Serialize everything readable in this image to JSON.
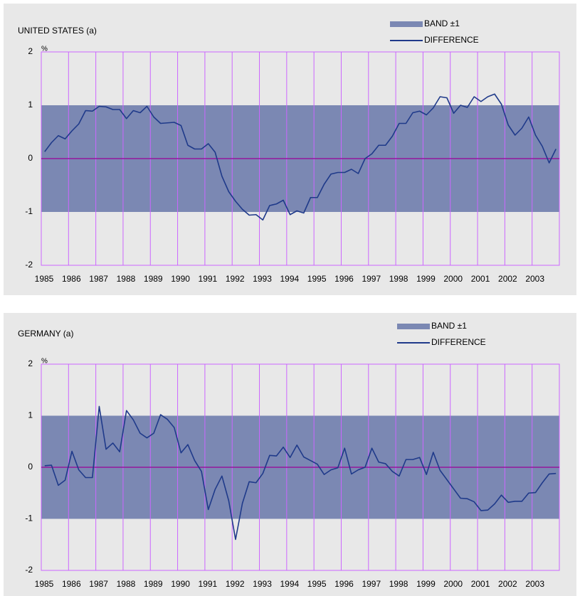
{
  "chart_data": [
    {
      "type": "band-line",
      "title": "UNITED STATES (a)",
      "ylabel": "%",
      "band": {
        "name": "BAND ±1",
        "color": "#7b88b3",
        "low": -1,
        "high": 1
      },
      "x": [
        1985.125,
        1985.375,
        1985.625,
        1985.875,
        1986.125,
        1986.375,
        1986.625,
        1986.875,
        1987.125,
        1987.375,
        1987.625,
        1987.875,
        1988.125,
        1988.375,
        1988.625,
        1988.875,
        1989.125,
        1989.375,
        1989.625,
        1989.875,
        1990.125,
        1990.375,
        1990.625,
        1990.875,
        1991.125,
        1991.375,
        1991.625,
        1991.875,
        1992.125,
        1992.375,
        1992.625,
        1992.875,
        1993.125,
        1993.375,
        1993.625,
        1993.875,
        1994.125,
        1994.375,
        1994.625,
        1994.875,
        1995.125,
        1995.375,
        1995.625,
        1995.875,
        1996.125,
        1996.375,
        1996.625,
        1996.875,
        1997.125,
        1997.375,
        1997.625,
        1997.875,
        1998.125,
        1998.375,
        1998.625,
        1998.875,
        1999.125,
        1999.375,
        1999.625,
        1999.875,
        2000.125,
        2000.375,
        2000.625,
        2000.875,
        2001.125,
        2001.375,
        2001.625,
        2001.875,
        2002.125,
        2002.375,
        2002.625,
        2002.875,
        2003.125,
        2003.375,
        2003.625,
        2003.875
      ],
      "series": [
        {
          "name": "DIFFERENCE",
          "color": "#1f3a8a",
          "values": [
            0.13,
            0.3,
            0.43,
            0.37,
            0.52,
            0.65,
            0.9,
            0.89,
            0.98,
            0.97,
            0.92,
            0.92,
            0.75,
            0.9,
            0.86,
            0.98,
            0.78,
            0.66,
            0.67,
            0.68,
            0.62,
            0.25,
            0.18,
            0.18,
            0.28,
            0.12,
            -0.33,
            -0.62,
            -0.8,
            -0.95,
            -1.06,
            -1.05,
            -1.15,
            -0.88,
            -0.85,
            -0.78,
            -1.05,
            -0.98,
            -1.02,
            -0.73,
            -0.73,
            -0.48,
            -0.29,
            -0.26,
            -0.26,
            -0.2,
            -0.28,
            0.0,
            0.09,
            0.25,
            0.25,
            0.42,
            0.66,
            0.66,
            0.86,
            0.89,
            0.82,
            0.95,
            1.16,
            1.14,
            0.85,
            1.0,
            0.96,
            1.16,
            1.07,
            1.16,
            1.21,
            1.02,
            0.63,
            0.44,
            0.57,
            0.78,
            0.44,
            0.23,
            -0.08,
            0.18
          ]
        }
      ],
      "xlim": [
        1985,
        2004
      ],
      "xticks": [
        1985,
        1986,
        1987,
        1988,
        1989,
        1990,
        1991,
        1992,
        1993,
        1994,
        1995,
        1996,
        1997,
        1998,
        1999,
        2000,
        2001,
        2002,
        2003
      ],
      "ylim": [
        -2,
        2
      ],
      "yticks": [
        -2,
        -1,
        0,
        1,
        2
      ],
      "zero_line": true,
      "grid_color": "#cc66ff",
      "zero_color": "#990099"
    },
    {
      "type": "band-line",
      "title": "GERMANY (a)",
      "ylabel": "%",
      "band": {
        "name": "BAND ±1",
        "color": "#7b88b3",
        "low": -1,
        "high": 1
      },
      "x": [
        1985.125,
        1985.375,
        1985.625,
        1985.875,
        1986.125,
        1986.375,
        1986.625,
        1986.875,
        1987.125,
        1987.375,
        1987.625,
        1987.875,
        1988.125,
        1988.375,
        1988.625,
        1988.875,
        1989.125,
        1989.375,
        1989.625,
        1989.875,
        1990.125,
        1990.375,
        1990.625,
        1990.875,
        1991.125,
        1991.375,
        1991.625,
        1991.875,
        1992.125,
        1992.375,
        1992.625,
        1992.875,
        1993.125,
        1993.375,
        1993.625,
        1993.875,
        1994.125,
        1994.375,
        1994.625,
        1994.875,
        1995.125,
        1995.375,
        1995.625,
        1995.875,
        1996.125,
        1996.375,
        1996.625,
        1996.875,
        1997.125,
        1997.375,
        1997.625,
        1997.875,
        1998.125,
        1998.375,
        1998.625,
        1998.875,
        1999.125,
        1999.375,
        1999.625,
        1999.875,
        2000.125,
        2000.375,
        2000.625,
        2000.875,
        2001.125,
        2001.375,
        2001.625,
        2001.875,
        2002.125,
        2002.375,
        2002.625,
        2002.875,
        2003.125,
        2003.375,
        2003.625,
        2003.875
      ],
      "series": [
        {
          "name": "DIFFERENCE",
          "color": "#1f3a8a",
          "values": [
            0.03,
            0.04,
            -0.35,
            -0.25,
            0.31,
            -0.05,
            -0.2,
            -0.2,
            1.18,
            0.35,
            0.47,
            0.3,
            1.1,
            0.92,
            0.66,
            0.57,
            0.66,
            1.02,
            0.93,
            0.77,
            0.28,
            0.44,
            0.13,
            -0.08,
            -0.82,
            -0.43,
            -0.17,
            -0.65,
            -1.4,
            -0.7,
            -0.28,
            -0.3,
            -0.12,
            0.23,
            0.22,
            0.39,
            0.19,
            0.43,
            0.2,
            0.13,
            0.06,
            -0.14,
            -0.05,
            -0.01,
            0.37,
            -0.13,
            -0.05,
            0.0,
            0.37,
            0.1,
            0.07,
            -0.08,
            -0.17,
            0.15,
            0.15,
            0.19,
            -0.14,
            0.29,
            -0.06,
            -0.24,
            -0.42,
            -0.6,
            -0.61,
            -0.67,
            -0.84,
            -0.83,
            -0.71,
            -0.54,
            -0.68,
            -0.66,
            -0.66,
            -0.5,
            -0.49,
            -0.3,
            -0.13,
            -0.12
          ]
        }
      ],
      "xlim": [
        1985,
        2004
      ],
      "xticks": [
        1985,
        1986,
        1987,
        1988,
        1989,
        1990,
        1991,
        1992,
        1993,
        1994,
        1995,
        1996,
        1997,
        1998,
        1999,
        2000,
        2001,
        2002,
        2003
      ],
      "ylim": [
        -2,
        2
      ],
      "yticks": [
        -2,
        -1,
        0,
        1,
        2
      ],
      "zero_line": true,
      "grid_color": "#cc66ff",
      "zero_color": "#990099"
    }
  ]
}
